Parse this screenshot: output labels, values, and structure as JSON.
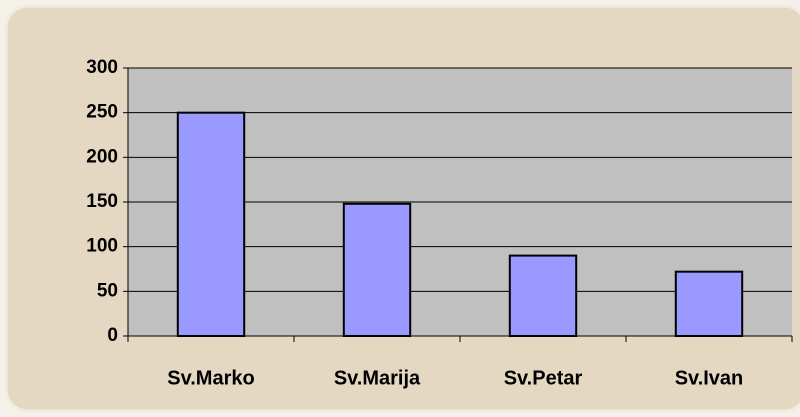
{
  "chart_data": {
    "type": "bar",
    "categories": [
      "Sv.Marko",
      "Sv.Marija",
      "Sv.Petar",
      "Sv.Ivan"
    ],
    "values": [
      250,
      148,
      90,
      72
    ],
    "color": "#9999ff",
    "ylim": [
      0,
      300
    ],
    "yticks": [
      0,
      50,
      100,
      150,
      200,
      250,
      300
    ],
    "grid": true
  }
}
